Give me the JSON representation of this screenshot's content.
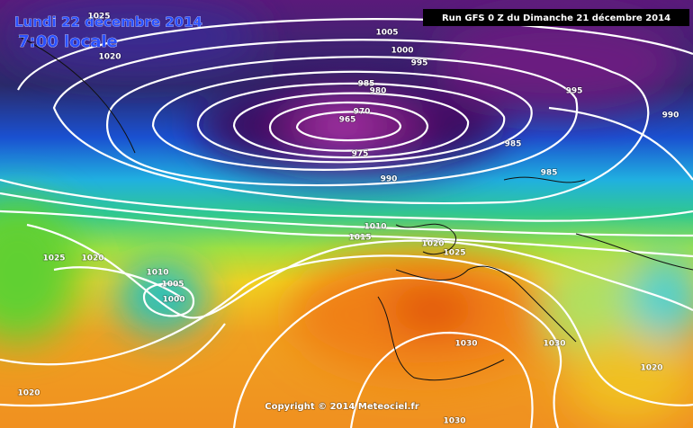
{
  "header": {
    "date": "Lundi 22 décembre 2014",
    "time": "7:00 locale",
    "run": "Run GFS 0 Z du Dimanche 21 décembre 2014"
  },
  "footer": {
    "copyright": "Copyright © 2014 Meteociel.fr"
  },
  "isobar_labels": [
    "1025",
    "1005",
    "1020",
    "1000",
    "995",
    "985",
    "980",
    "995",
    "990",
    "970",
    "965",
    "975",
    "985",
    "985",
    "990",
    "1010",
    "1015",
    "1020",
    "1025",
    "1025",
    "1020",
    "1010",
    "1005",
    "1000",
    "1030",
    "1030",
    "1020",
    "1020",
    "1030"
  ]
}
